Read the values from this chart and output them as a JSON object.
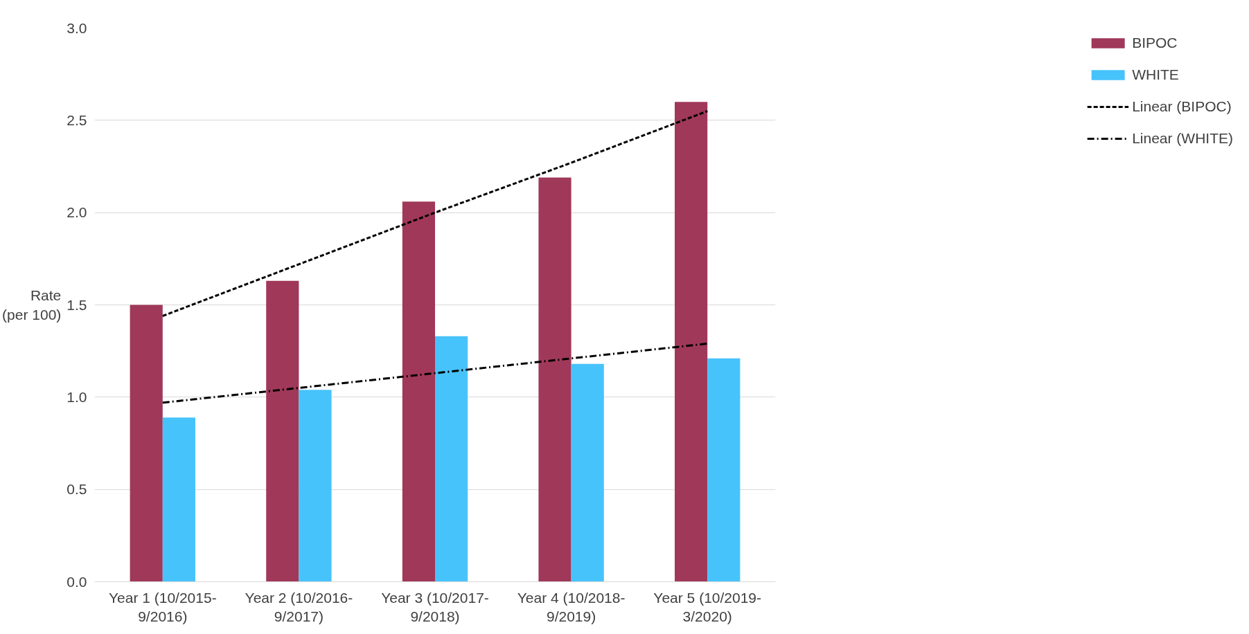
{
  "chart_data": {
    "type": "bar",
    "ylabel": "Rate\n(per 100)",
    "categories": [
      "Year 1 (10/2015-\n9/2016)",
      "Year 2 (10/2016-\n9/2017)",
      "Year 3 (10/2017-\n9/2018)",
      "Year 4 (10/2018-\n9/2019)",
      "Year 5 (10/2019-\n3/2020)"
    ],
    "series": [
      {
        "name": "BIPOC",
        "color": "#a0385a",
        "values": [
          1.5,
          1.63,
          2.06,
          2.19,
          2.6
        ]
      },
      {
        "name": "WHITE",
        "color": "#47c3fb",
        "values": [
          0.89,
          1.04,
          1.33,
          1.18,
          1.21
        ]
      },
      {
        "name": "Linear (BIPOC)",
        "type": "line",
        "color": "#000000",
        "line_style": "dashed",
        "values": [
          1.44,
          1.72,
          2.0,
          2.27,
          2.55
        ]
      },
      {
        "name": "Linear (WHITE)",
        "type": "line",
        "color": "#000000",
        "line_style": "dashdot",
        "values": [
          0.97,
          1.05,
          1.13,
          1.21,
          1.29
        ]
      }
    ],
    "ylim": [
      0,
      3
    ],
    "yticks": [
      {
        "value": 0,
        "label": "0.0"
      },
      {
        "value": 0.5,
        "label": "0.5"
      },
      {
        "value": 1,
        "label": "1.0"
      },
      {
        "value": 1.5,
        "label": "1.5"
      },
      {
        "value": 2,
        "label": "2.0"
      },
      {
        "value": 2.5,
        "label": "2.5"
      },
      {
        "value": 3,
        "label": "3.0"
      }
    ],
    "grid": "y",
    "legend": "right"
  }
}
